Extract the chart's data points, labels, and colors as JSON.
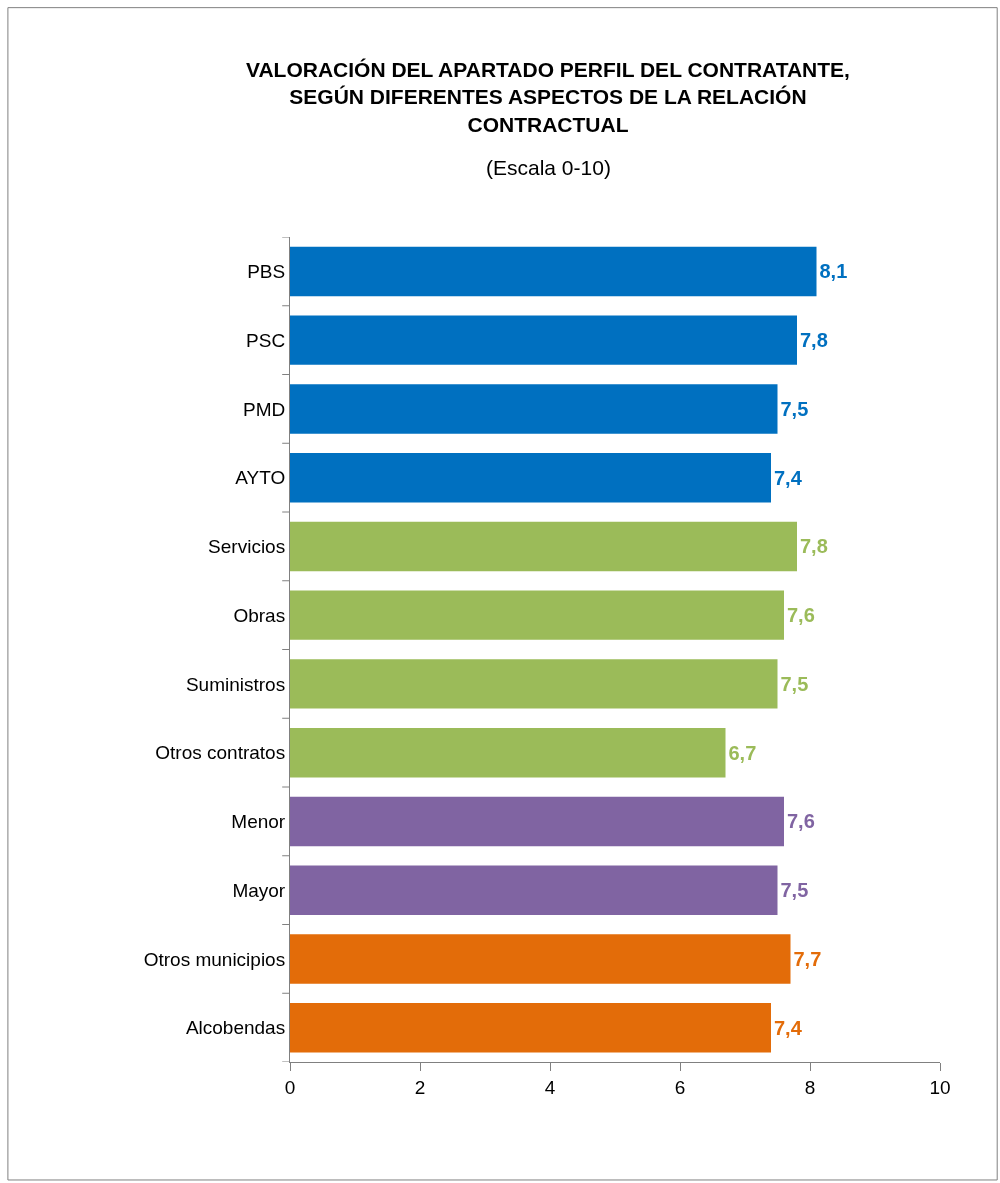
{
  "chart_data": {
    "type": "bar",
    "orientation": "horizontal",
    "title": "VALORACIÓN DEL APARTADO PERFIL DEL CONTRATANTE, SEGÚN DIFERENTES ASPECTOS DE LA RELACIÓN CONTRACTUAL",
    "subtitle": "(Escala 0-10)",
    "categories": [
      "PBS",
      "PSC",
      "PMD",
      "AYTO",
      "Servicios",
      "Obras",
      "Suministros",
      "Otros contratos",
      "Menor",
      "Mayor",
      "Otros municipios",
      "Alcobendas"
    ],
    "values": [
      8.1,
      7.8,
      7.5,
      7.4,
      7.8,
      7.6,
      7.5,
      6.7,
      7.6,
      7.5,
      7.7,
      7.4
    ],
    "colors": [
      "#0070c0",
      "#0070c0",
      "#0070c0",
      "#0070c0",
      "#9bbb59",
      "#9bbb59",
      "#9bbb59",
      "#9bbb59",
      "#8064a2",
      "#8064a2",
      "#e36c09",
      "#e36c09"
    ],
    "xlim": [
      0,
      10
    ],
    "xticks": [
      0,
      2,
      4,
      6,
      8,
      10
    ],
    "value_labels": [
      "8,1",
      "7,8",
      "7,5",
      "7,4",
      "7,8",
      "7,6",
      "7,5",
      "6,7",
      "7,6",
      "7,5",
      "7,7",
      "7,4"
    ]
  }
}
